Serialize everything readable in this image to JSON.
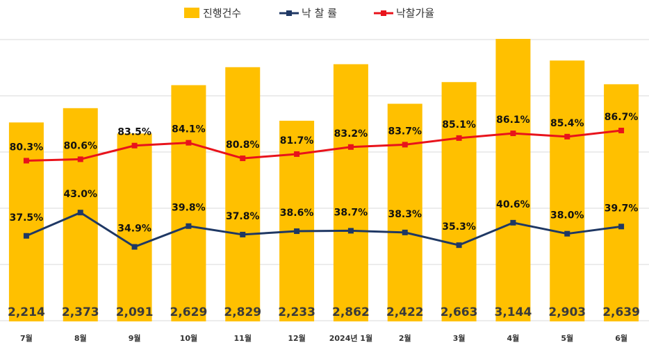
{
  "chart_data": {
    "type": "bar",
    "title": "",
    "xlabel": "",
    "ylabel": "",
    "categories": [
      "7월",
      "8월",
      "9월",
      "10월",
      "11월",
      "12월",
      "2024년 1월",
      "2월",
      "3월",
      "4월",
      "5월",
      "6월"
    ],
    "series": [
      {
        "name": "진행건수",
        "type": "bar",
        "color": "#FFC000",
        "values": [
          2214,
          2373,
          2091,
          2629,
          2829,
          2233,
          2862,
          2422,
          2663,
          3144,
          2903,
          2639
        ],
        "labels": [
          "2,214",
          "2,373",
          "2,091",
          "2,629",
          "2,829",
          "2,233",
          "2,862",
          "2,422",
          "2,663",
          "3,144",
          "2,903",
          "2,639"
        ]
      },
      {
        "name": "낙 찰 률",
        "type": "line",
        "color": "#1F3864",
        "values": [
          37.5,
          43.0,
          34.9,
          39.8,
          37.8,
          38.6,
          38.7,
          38.3,
          35.3,
          40.6,
          38.0,
          39.7
        ],
        "labels": [
          "37.5%",
          "43.0%",
          "34.9%",
          "39.8%",
          "37.8%",
          "38.6%",
          "38.7%",
          "38.3%",
          "35.3%",
          "40.6%",
          "38.0%",
          "39.7%"
        ]
      },
      {
        "name": "낙찰가율",
        "type": "line",
        "color": "#E8131B",
        "values": [
          80.3,
          80.6,
          83.5,
          84.1,
          80.8,
          81.7,
          83.2,
          83.7,
          85.1,
          86.1,
          85.4,
          86.7
        ],
        "labels": [
          "80.3%",
          "80.6%",
          "83.5%",
          "84.1%",
          "80.8%",
          "81.7%",
          "83.2%",
          "83.7%",
          "85.1%",
          "86.1%",
          "85.4%",
          "86.7%"
        ]
      }
    ],
    "grid": true,
    "legend_position": "top-center"
  }
}
